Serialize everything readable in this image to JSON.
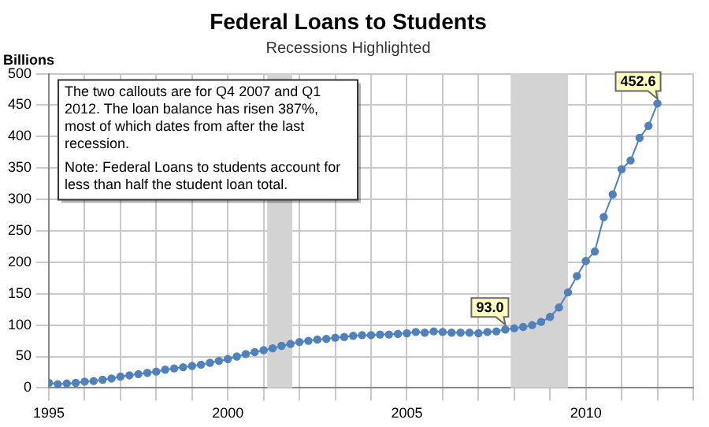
{
  "chart_data": {
    "type": "line",
    "title": "Federal Loans to Students",
    "subtitle": "Recessions Highlighted",
    "ylabel": "Billions",
    "x": [
      1995,
      1995.25,
      1995.5,
      1995.75,
      1996,
      1996.25,
      1996.5,
      1996.75,
      1997,
      1997.25,
      1997.5,
      1997.75,
      1998,
      1998.25,
      1998.5,
      1998.75,
      1999,
      1999.25,
      1999.5,
      1999.75,
      2000,
      2000.25,
      2000.5,
      2000.75,
      2001,
      2001.25,
      2001.5,
      2001.75,
      2002,
      2002.25,
      2002.5,
      2002.75,
      2003,
      2003.25,
      2003.5,
      2003.75,
      2004,
      2004.25,
      2004.5,
      2004.75,
      2005,
      2005.25,
      2005.5,
      2005.75,
      2006,
      2006.25,
      2006.5,
      2006.75,
      2007,
      2007.25,
      2007.5,
      2007.75,
      2008,
      2008.25,
      2008.5,
      2008.75,
      2009,
      2009.25,
      2009.5,
      2009.75,
      2010,
      2010.25,
      2010.5,
      2010.75,
      2011,
      2011.25,
      2011.5,
      2011.75,
      2012
    ],
    "series": [
      {
        "color": "#4f81bd",
        "values": [
          8,
          6,
          7,
          8,
          10,
          11,
          13,
          15,
          18,
          20,
          22,
          24,
          26,
          29,
          31,
          33,
          35,
          37,
          40,
          43,
          46,
          50,
          54,
          57,
          60,
          63,
          67,
          70,
          73,
          75,
          77,
          78,
          80,
          81,
          83,
          84,
          84,
          85,
          85,
          86,
          87,
          89,
          88,
          90,
          89,
          88,
          88,
          88,
          87,
          89,
          90,
          93,
          95,
          97,
          100,
          105,
          113,
          128,
          152,
          178,
          202,
          217,
          272,
          308,
          348,
          362,
          398,
          417,
          452.6
        ]
      }
    ],
    "xlim": [
      1995,
      2013
    ],
    "xticks": [
      1995,
      {
        "value": 1996,
        "label": null
      },
      {
        "value": 1997,
        "label": null
      },
      {
        "value": 1998,
        "label": null
      },
      {
        "value": 1999,
        "label": null
      },
      2000,
      {
        "value": 2001,
        "label": null
      },
      {
        "value": 2002,
        "label": null
      },
      {
        "value": 2003,
        "label": null
      },
      {
        "value": 2004,
        "label": null
      },
      2005,
      {
        "value": 2006,
        "label": null
      },
      {
        "value": 2007,
        "label": null
      },
      {
        "value": 2008,
        "label": null
      },
      {
        "value": 2009,
        "label": null
      },
      2010,
      {
        "value": 2011,
        "label": null
      },
      {
        "value": 2012,
        "label": null
      },
      {
        "value": 2013,
        "label": null
      }
    ],
    "ylim": [
      0,
      500
    ],
    "yticks": [
      0,
      50,
      100,
      150,
      200,
      250,
      300,
      350,
      400,
      450,
      500
    ],
    "bands": [
      {
        "axis": "x",
        "from": 2001.1,
        "to": 2001.8,
        "color": "#d3d3d3"
      },
      {
        "axis": "x",
        "from": 2007.9,
        "to": 2009.5,
        "color": "#d3d3d3"
      }
    ],
    "annotations": [
      "The two callouts are for Q4 2007 and Q1 2012. The loan balance has risen 387%, most of which dates from after the last recession.",
      "Note: Federal Loans to students account for less than half the student loan total.",
      {
        "text": "93.0",
        "x": 2007.75,
        "y": 93
      },
      {
        "text": "452.6",
        "x": 2012,
        "y": 452.6
      }
    ],
    "grid": true,
    "legend": false,
    "marker": "circle",
    "line_style": "solid"
  }
}
